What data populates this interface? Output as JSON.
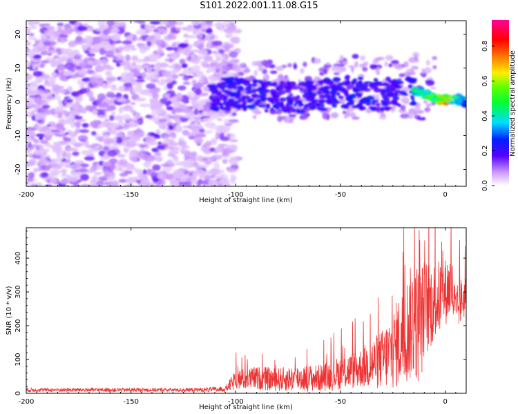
{
  "title": "S101.2022.001.11.08.G15",
  "chart_data": [
    {
      "type": "heatmap",
      "xlabel": "Height of straight line (km)",
      "ylabel": "Frequency (Hz)",
      "xlim": [
        -200,
        10
      ],
      "ylim": [
        -25,
        24
      ],
      "xticks": [
        -200,
        -150,
        -100,
        -50,
        0
      ],
      "yticks": [
        -20,
        -10,
        0,
        10,
        20
      ],
      "colorbar": {
        "label": "Normalized spectral amplitude",
        "range": [
          0,
          0.95
        ],
        "ticks": [
          0.0,
          0.2,
          0.4,
          0.6,
          0.8
        ],
        "tick_labels": [
          "0.0",
          "0.2",
          "0.4",
          "0.6",
          "0.8"
        ]
      },
      "signal_ridge": {
        "x": [
          -112,
          -100,
          -90,
          -80,
          -70,
          -60,
          -50,
          -40,
          -30,
          -20,
          -15,
          -10,
          -5,
          0,
          5,
          10
        ],
        "y": [
          2,
          2.5,
          2,
          1.5,
          1.5,
          2,
          3,
          2.5,
          2,
          3,
          3.5,
          2.5,
          1,
          0.5,
          1,
          0
        ],
        "amplitude": [
          0.25,
          0.3,
          0.3,
          0.25,
          0.25,
          0.25,
          0.3,
          0.3,
          0.25,
          0.3,
          0.45,
          0.5,
          0.55,
          0.8,
          0.5,
          0.3
        ]
      },
      "noise_region_x": [
        -200,
        -105
      ],
      "noise_amplitude": 0.05
    },
    {
      "type": "line",
      "xlabel": "Height of straight line (km)",
      "ylabel": "SNR (10 * v/v)",
      "xlim": [
        -200,
        10
      ],
      "ylim": [
        0,
        490
      ],
      "xticks": [
        -200,
        -150,
        -100,
        -50,
        0
      ],
      "yticks": [
        0,
        100,
        200,
        300,
        400
      ],
      "color": "#ee3333",
      "envelope": {
        "x": [
          -200,
          -160,
          -120,
          -105,
          -100,
          -90,
          -80,
          -70,
          -60,
          -50,
          -40,
          -30,
          -25,
          -20,
          -15,
          -12,
          -10,
          -5,
          0,
          3,
          5,
          7,
          10
        ],
        "mean": [
          10,
          10,
          10,
          12,
          40,
          45,
          40,
          45,
          45,
          60,
          75,
          100,
          130,
          170,
          220,
          200,
          250,
          270,
          300,
          320,
          230,
          270,
          290
        ],
        "spread": [
          6,
          6,
          6,
          8,
          30,
          35,
          35,
          40,
          40,
          50,
          60,
          90,
          120,
          150,
          180,
          180,
          150,
          120,
          100,
          100,
          80,
          70,
          60
        ]
      }
    }
  ]
}
